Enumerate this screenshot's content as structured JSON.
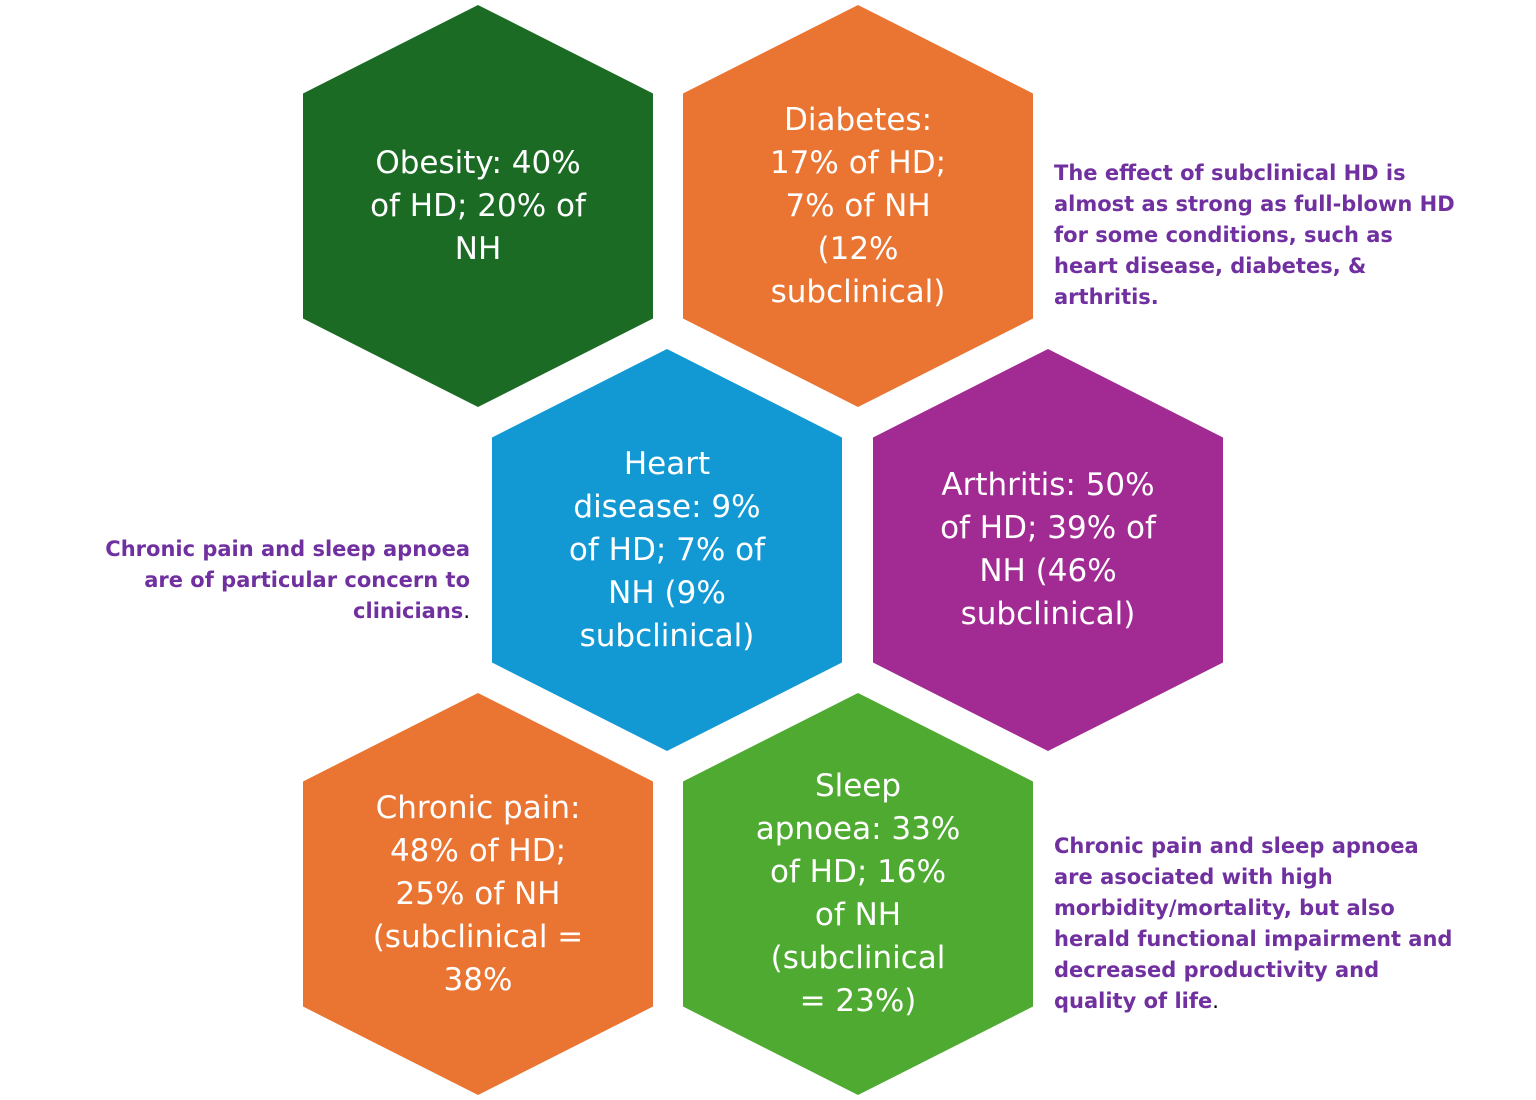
{
  "colors": {
    "dark_green": "#1b6b25",
    "orange": "#ea7432",
    "blue": "#1299d4",
    "purple": "#a12b93",
    "green": "#4eaa30",
    "note_text": "#7030a0"
  },
  "hexagons": {
    "obesity": "Obesity: 40%\nof HD; 20% of\nNH",
    "diabetes": "Diabetes:\n17% of HD;\n7% of NH\n(12%\nsubclinical)",
    "heart_disease": "Heart\ndisease: 9%\nof HD; 7% of\nNH (9%\nsubclinical)",
    "arthritis": "Arthritis: 50%\nof HD; 39% of\nNH (46%\nsubclinical)",
    "chronic_pain": "Chronic pain:\n48% of HD;\n25% of NH\n(subclinical =\n38%",
    "sleep_apnoea": "Sleep\napnoea: 33%\nof HD; 16%\nof NH\n(subclinical\n= 23%)"
  },
  "notes": {
    "subclinical_effect": "The effect of subclinical HD is\nalmost as strong as full-blown HD\nfor some conditions, such as\nheart disease, diabetes, &\narthritis.",
    "clinician_concern": "Chronic pain and sleep apnoea\nare of particular concern to\nclinicians",
    "clinician_concern_period": ".",
    "morbidity": "Chronic pain and sleep apnoea\nare asociated with high\nmorbidity/mortality, but also\nherald functional impairment and\ndecreased productivity and\nquality of life",
    "morbidity_period": "."
  }
}
